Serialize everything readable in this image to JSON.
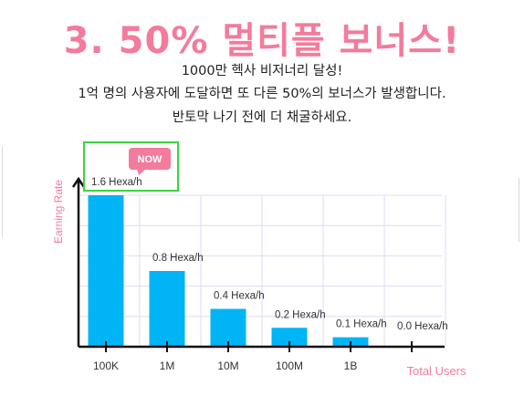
{
  "page": {
    "title": "3. 50% 멀티플 보너스!",
    "desc_line1": "1000만 헥사 비저너리 달성!",
    "desc_line2": "1억 명의 사용자에 도달하면 또 다른 50%의 보너스가 발생합니다.",
    "desc_line3": "반토막 나기 전에 더 채굴하세요."
  },
  "chart_data": {
    "type": "bar",
    "categories": [
      "100K",
      "1M",
      "10M",
      "100M",
      "1B",
      ""
    ],
    "values": [
      1.6,
      0.8,
      0.4,
      0.2,
      0.1,
      0.0
    ],
    "data_labels": [
      "1.6 Hexa/h",
      "0.8 Hexa/h",
      "0.4 Hexa/h",
      "0.2 Hexa/h",
      "0.1 Hexa/h",
      "0.0 Hexa/h"
    ],
    "xlabel": "Total Users",
    "ylabel": "Earning Rate",
    "ylim": [
      0,
      1.6
    ],
    "grid": true,
    "badge": "NOW",
    "bar_color": "#00b4f5",
    "axis_label_color": "#f37b9c",
    "badge_color": "#f37b9c",
    "grid_color": "#dcdcf4"
  }
}
